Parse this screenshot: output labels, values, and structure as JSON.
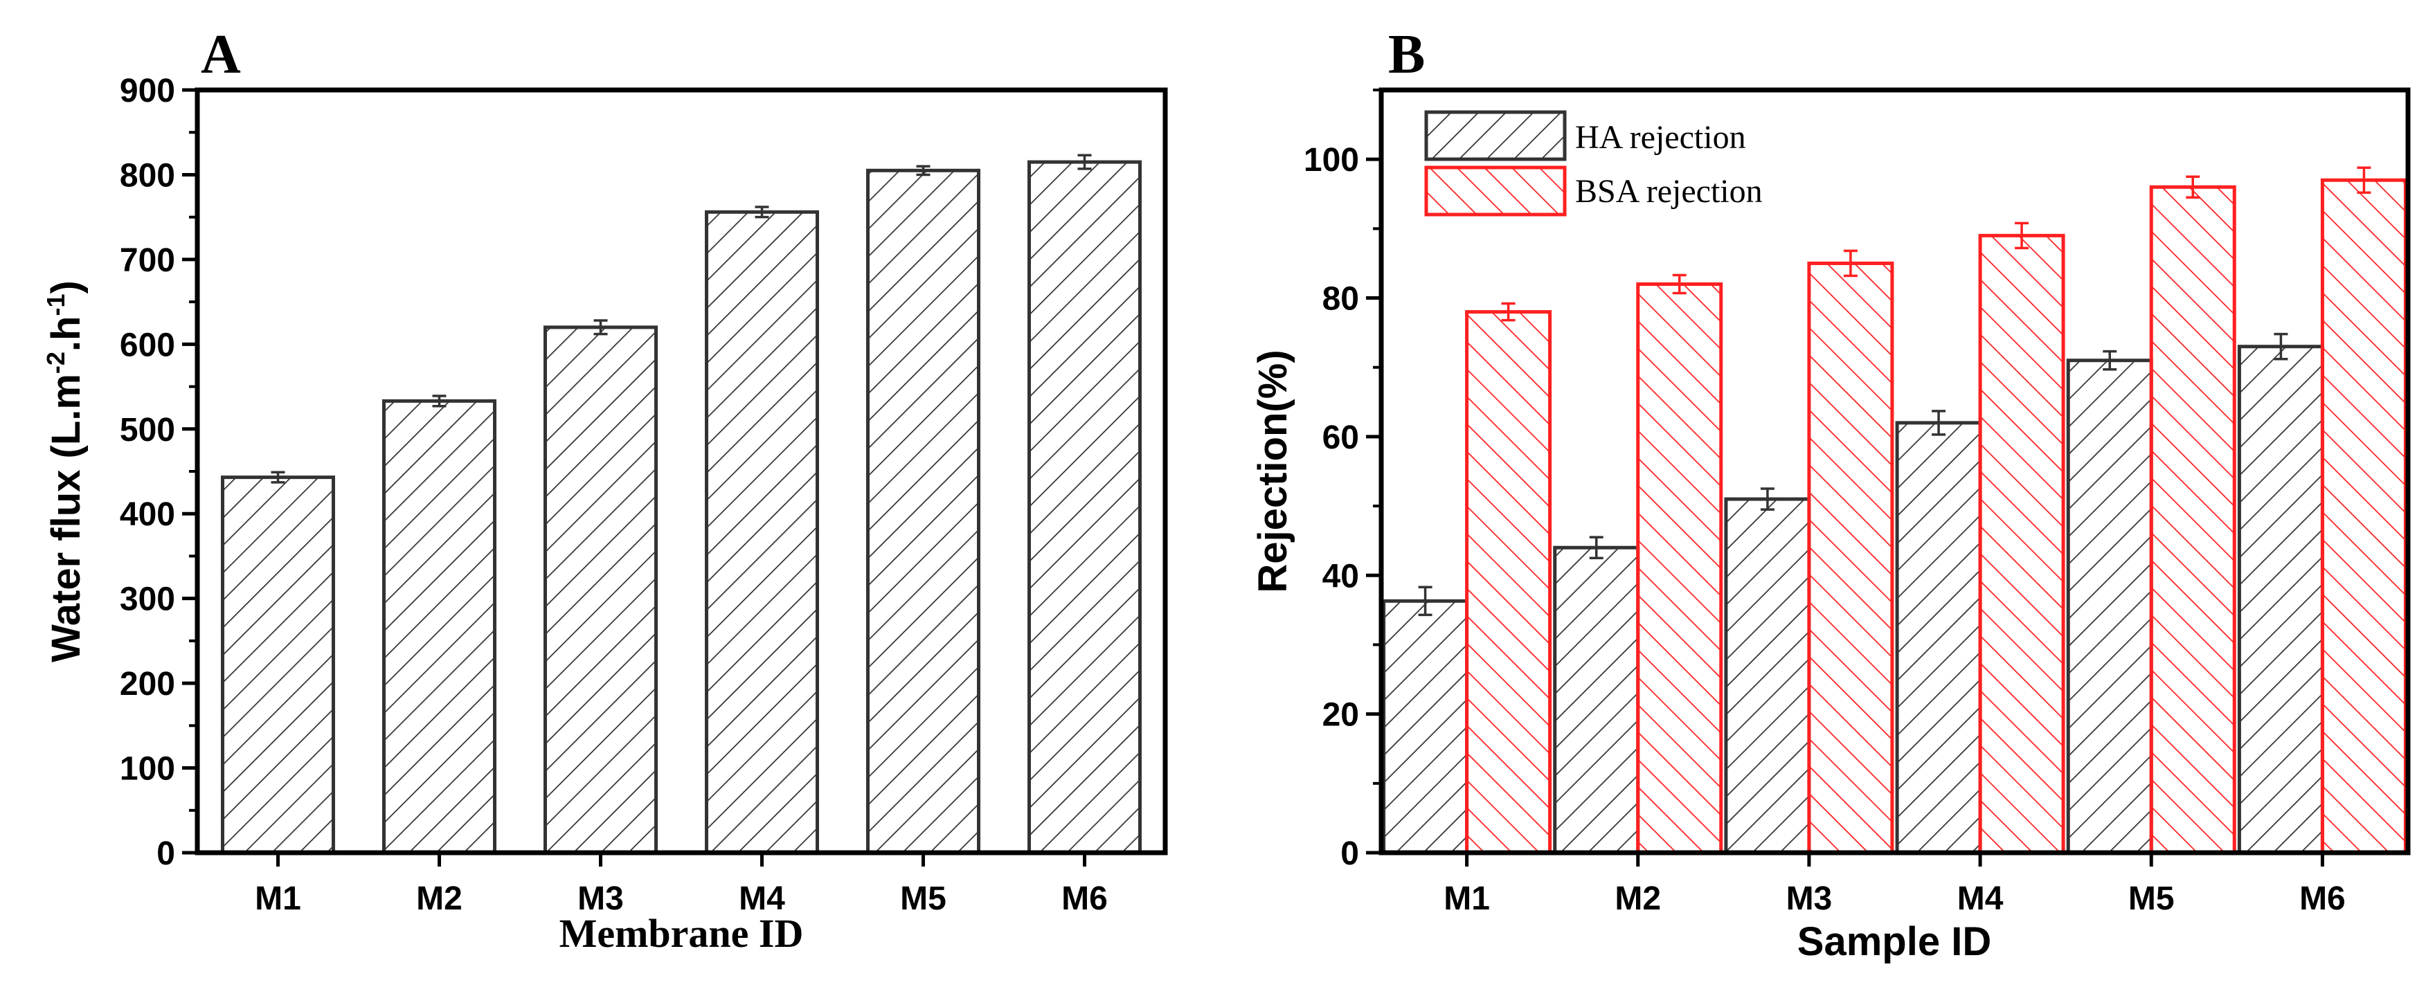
{
  "chart_data": [
    {
      "panel_label": "A",
      "type": "bar",
      "categories": [
        "M1",
        "M2",
        "M3",
        "M4",
        "M5",
        "M6"
      ],
      "values": [
        443,
        533,
        620,
        756,
        805,
        815
      ],
      "errors": [
        6,
        6,
        8,
        6,
        5,
        8
      ],
      "xlabel": "Membrane ID",
      "ylabel_main": "Water flux (L.m",
      "ylabel_sup1": "-2",
      "ylabel_mid": ".h",
      "ylabel_sup2": "-1",
      "ylabel_end": ")",
      "ylim": [
        0,
        900
      ],
      "yticks": [
        "0",
        "100",
        "200",
        "300",
        "400",
        "500",
        "600",
        "700",
        "800",
        "900"
      ],
      "bar_color": "#333333"
    },
    {
      "panel_label": "B",
      "type": "bar",
      "categories": [
        "M1",
        "M2",
        "M3",
        "M4",
        "M5",
        "M6"
      ],
      "series": [
        {
          "name": "HA rejection",
          "values": [
            36.3,
            44,
            51,
            62,
            71,
            73
          ],
          "errors": [
            2,
            1.5,
            1.5,
            1.7,
            1.3,
            1.8
          ],
          "color": "#333333"
        },
        {
          "name": "BSA rejection",
          "values": [
            78,
            82,
            85,
            89,
            96,
            97
          ],
          "errors": [
            1.2,
            1.3,
            1.8,
            1.8,
            1.5,
            1.8
          ],
          "color": "#ff2020"
        }
      ],
      "xlabel": "Sample ID",
      "ylabel": "Rejection(%)",
      "ylim": [
        0,
        110
      ],
      "yticks": [
        "0",
        "20",
        "40",
        "60",
        "80",
        "100"
      ],
      "legend_position": "top-left"
    }
  ]
}
